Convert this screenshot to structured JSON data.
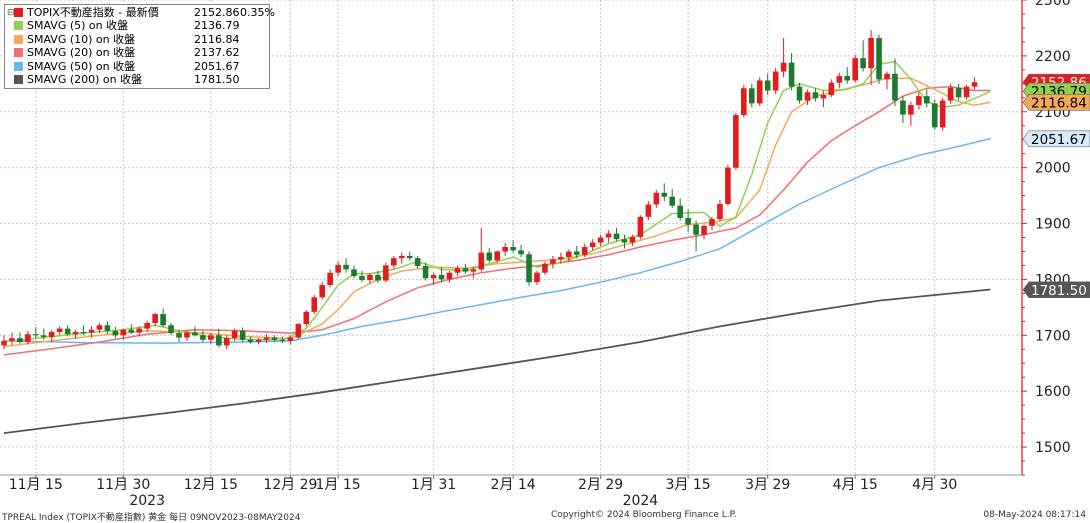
{
  "chart_data": {
    "type": "candlestick",
    "title": "",
    "xlabel": "",
    "ylabel": "",
    "ylim": [
      1450,
      2300
    ],
    "y_ticks": [
      1500,
      1600,
      1700,
      1800,
      1900,
      2000,
      2100,
      2200,
      2300
    ],
    "grid": true,
    "legend_position": "top-left",
    "colors": {
      "up": "#e11d1d",
      "down": "#1e7a2e",
      "sma5": "#8fd14f",
      "sma10": "#f4a95a",
      "sma20": "#ef6f73",
      "sma50": "#6ab6ee",
      "sma200": "#555555",
      "axis": "#e11d1d",
      "grid": "#c8c8c8"
    },
    "legend": [
      {
        "name": "TOPIX不動産指数 - 最新價",
        "value": "2152.86",
        "change": "0.35%",
        "color": "#e11d1d",
        "series": "price"
      },
      {
        "name": "SMAVG (5)  on 收盤",
        "value": "2136.79",
        "color": "#8fd14f",
        "series": "sma5"
      },
      {
        "name": "SMAVG (10)  on 收盤",
        "value": "2116.84",
        "color": "#f4a95a",
        "series": "sma10"
      },
      {
        "name": "SMAVG (20)  on 收盤",
        "value": "2137.62",
        "color": "#ef6f73",
        "series": "sma20"
      },
      {
        "name": "SMAVG (50)  on 收盤",
        "value": "2051.67",
        "color": "#6ab6ee",
        "series": "sma50"
      },
      {
        "name": "SMAVG (200)  on 收盤",
        "value": "1781.50",
        "color": "#555555",
        "series": "sma200"
      }
    ],
    "right_labels": [
      {
        "value": 2152.86,
        "text": "2152.86",
        "bg": "#e11d1d",
        "fg": "#ffffff"
      },
      {
        "value": 2136.79,
        "text": "2136.79",
        "bg": "#8fd14f",
        "fg": "#000000"
      },
      {
        "value": 2116.84,
        "text": "2116.84",
        "bg": "#f4a95a",
        "fg": "#000000"
      },
      {
        "value": 2051.67,
        "text": "2051.67",
        "bg": "#d6ebfb",
        "fg": "#000000"
      },
      {
        "value": 1781.5,
        "text": "1781.50",
        "bg": "#555555",
        "fg": "#ffffff"
      }
    ],
    "x_ticks": [
      {
        "label": "11月 15",
        "index": 4
      },
      {
        "label": "11月 30",
        "index": 15
      },
      {
        "label": "12月 15",
        "index": 26
      },
      {
        "label": "12月 29",
        "index": 36
      },
      {
        "label": "1月 15",
        "index": 42
      },
      {
        "label": "1月 31",
        "index": 54
      },
      {
        "label": "2月 14",
        "index": 64
      },
      {
        "label": "2月 29",
        "index": 75
      },
      {
        "label": "3月 15",
        "index": 86
      },
      {
        "label": "3月 29",
        "index": 96
      },
      {
        "label": "4月 15",
        "index": 107
      },
      {
        "label": "4月 30",
        "index": 117
      }
    ],
    "year_labels": [
      {
        "label": "2023",
        "index": 18
      },
      {
        "label": "2024",
        "index": 80
      }
    ],
    "candles": [
      [
        1682,
        1700,
        1675,
        1690
      ],
      [
        1690,
        1705,
        1682,
        1695
      ],
      [
        1695,
        1705,
        1685,
        1688
      ],
      [
        1688,
        1708,
        1684,
        1702
      ],
      [
        1702,
        1715,
        1695,
        1700
      ],
      [
        1700,
        1712,
        1692,
        1697
      ],
      [
        1697,
        1710,
        1688,
        1706
      ],
      [
        1706,
        1716,
        1700,
        1712
      ],
      [
        1712,
        1718,
        1698,
        1702
      ],
      [
        1702,
        1710,
        1694,
        1706
      ],
      [
        1706,
        1718,
        1700,
        1705
      ],
      [
        1705,
        1716,
        1696,
        1710
      ],
      [
        1710,
        1722,
        1704,
        1718
      ],
      [
        1718,
        1725,
        1702,
        1708
      ],
      [
        1708,
        1715,
        1695,
        1700
      ],
      [
        1700,
        1712,
        1692,
        1710
      ],
      [
        1710,
        1720,
        1702,
        1705
      ],
      [
        1705,
        1716,
        1698,
        1712
      ],
      [
        1712,
        1726,
        1706,
        1722
      ],
      [
        1722,
        1740,
        1716,
        1738
      ],
      [
        1738,
        1748,
        1715,
        1718
      ],
      [
        1718,
        1722,
        1700,
        1704
      ],
      [
        1704,
        1710,
        1688,
        1696
      ],
      [
        1696,
        1708,
        1690,
        1705
      ],
      [
        1705,
        1716,
        1698,
        1700
      ],
      [
        1700,
        1708,
        1688,
        1692
      ],
      [
        1692,
        1704,
        1684,
        1700
      ],
      [
        1700,
        1712,
        1678,
        1682
      ],
      [
        1682,
        1700,
        1675,
        1695
      ],
      [
        1695,
        1712,
        1690,
        1708
      ],
      [
        1708,
        1714,
        1688,
        1692
      ],
      [
        1692,
        1698,
        1685,
        1688
      ],
      [
        1688,
        1695,
        1684,
        1692
      ],
      [
        1692,
        1702,
        1686,
        1696
      ],
      [
        1696,
        1700,
        1688,
        1692
      ],
      [
        1692,
        1698,
        1686,
        1690
      ],
      [
        1690,
        1700,
        1684,
        1696
      ],
      [
        1696,
        1722,
        1694,
        1720
      ],
      [
        1720,
        1745,
        1716,
        1742
      ],
      [
        1742,
        1772,
        1738,
        1768
      ],
      [
        1768,
        1795,
        1764,
        1790
      ],
      [
        1790,
        1818,
        1786,
        1812
      ],
      [
        1812,
        1832,
        1806,
        1826
      ],
      [
        1826,
        1838,
        1812,
        1818
      ],
      [
        1818,
        1825,
        1802,
        1806
      ],
      [
        1806,
        1815,
        1795,
        1799
      ],
      [
        1799,
        1812,
        1792,
        1808
      ],
      [
        1808,
        1815,
        1794,
        1798
      ],
      [
        1798,
        1830,
        1795,
        1825
      ],
      [
        1825,
        1842,
        1818,
        1838
      ],
      [
        1838,
        1848,
        1828,
        1842
      ],
      [
        1842,
        1850,
        1834,
        1838
      ],
      [
        1838,
        1842,
        1820,
        1824
      ],
      [
        1824,
        1830,
        1798,
        1802
      ],
      [
        1802,
        1812,
        1790,
        1808
      ],
      [
        1808,
        1822,
        1795,
        1800
      ],
      [
        1800,
        1815,
        1794,
        1812
      ],
      [
        1812,
        1825,
        1806,
        1820
      ],
      [
        1820,
        1828,
        1810,
        1814
      ],
      [
        1814,
        1822,
        1802,
        1818
      ],
      [
        1818,
        1892,
        1814,
        1848
      ],
      [
        1848,
        1856,
        1830,
        1834
      ],
      [
        1834,
        1852,
        1830,
        1850
      ],
      [
        1850,
        1865,
        1842,
        1858
      ],
      [
        1858,
        1870,
        1848,
        1852
      ],
      [
        1852,
        1862,
        1840,
        1845
      ],
      [
        1845,
        1850,
        1788,
        1795
      ],
      [
        1795,
        1815,
        1790,
        1812
      ],
      [
        1812,
        1832,
        1808,
        1828
      ],
      [
        1828,
        1842,
        1820,
        1836
      ],
      [
        1836,
        1848,
        1828,
        1840
      ],
      [
        1840,
        1854,
        1832,
        1850
      ],
      [
        1850,
        1860,
        1838,
        1844
      ],
      [
        1844,
        1864,
        1840,
        1858
      ],
      [
        1858,
        1872,
        1852,
        1866
      ],
      [
        1866,
        1880,
        1860,
        1875
      ],
      [
        1875,
        1888,
        1866,
        1882
      ],
      [
        1882,
        1892,
        1868,
        1872
      ],
      [
        1872,
        1880,
        1855,
        1866
      ],
      [
        1866,
        1880,
        1860,
        1876
      ],
      [
        1876,
        1915,
        1872,
        1912
      ],
      [
        1912,
        1940,
        1906,
        1934
      ],
      [
        1934,
        1960,
        1928,
        1955
      ],
      [
        1955,
        1972,
        1940,
        1948
      ],
      [
        1948,
        1962,
        1928,
        1932
      ],
      [
        1932,
        1945,
        1905,
        1910
      ],
      [
        1910,
        1925,
        1885,
        1898
      ],
      [
        1898,
        1905,
        1850,
        1880
      ],
      [
        1880,
        1898,
        1872,
        1896
      ],
      [
        1896,
        1912,
        1888,
        1908
      ],
      [
        1908,
        1942,
        1904,
        1935
      ],
      [
        1935,
        2005,
        1932,
        2000
      ],
      [
        2000,
        2098,
        1996,
        2094
      ],
      [
        2094,
        2148,
        2090,
        2142
      ],
      [
        2142,
        2150,
        2108,
        2115
      ],
      [
        2115,
        2162,
        2110,
        2156
      ],
      [
        2156,
        2168,
        2130,
        2138
      ],
      [
        2138,
        2178,
        2132,
        2172
      ],
      [
        2172,
        2232,
        2162,
        2188
      ],
      [
        2188,
        2205,
        2138,
        2145
      ],
      [
        2145,
        2152,
        2115,
        2120
      ],
      [
        2120,
        2140,
        2112,
        2135
      ],
      [
        2135,
        2142,
        2118,
        2124
      ],
      [
        2124,
        2138,
        2108,
        2130
      ],
      [
        2130,
        2158,
        2126,
        2152
      ],
      [
        2152,
        2170,
        2142,
        2164
      ],
      [
        2164,
        2180,
        2150,
        2156
      ],
      [
        2156,
        2202,
        2152,
        2196
      ],
      [
        2196,
        2228,
        2172,
        2178
      ],
      [
        2178,
        2246,
        2148,
        2232
      ],
      [
        2232,
        2238,
        2150,
        2158
      ],
      [
        2158,
        2172,
        2140,
        2168
      ],
      [
        2168,
        2195,
        2110,
        2120
      ],
      [
        2120,
        2128,
        2080,
        2095
      ],
      [
        2095,
        2118,
        2075,
        2112
      ],
      [
        2112,
        2136,
        2104,
        2128
      ],
      [
        2128,
        2140,
        2108,
        2115
      ],
      [
        2115,
        2122,
        2068,
        2072
      ],
      [
        2072,
        2125,
        2066,
        2120
      ],
      [
        2120,
        2150,
        2114,
        2143
      ],
      [
        2143,
        2150,
        2120,
        2126
      ],
      [
        2126,
        2148,
        2122,
        2145
      ],
      [
        2145,
        2162,
        2140,
        2153
      ]
    ],
    "sma_series": {
      "sma5": [
        [
          0,
          1688
        ],
        [
          5,
          1696
        ],
        [
          10,
          1704
        ],
        [
          15,
          1710
        ],
        [
          19,
          1718
        ],
        [
          22,
          1708
        ],
        [
          26,
          1697
        ],
        [
          30,
          1693
        ],
        [
          35,
          1691
        ],
        [
          38,
          1712
        ],
        [
          40,
          1750
        ],
        [
          42,
          1790
        ],
        [
          44,
          1810
        ],
        [
          46,
          1810
        ],
        [
          49,
          1818
        ],
        [
          52,
          1832
        ],
        [
          55,
          1818
        ],
        [
          58,
          1815
        ],
        [
          61,
          1828
        ],
        [
          64,
          1840
        ],
        [
          67,
          1822
        ],
        [
          70,
          1830
        ],
        [
          73,
          1845
        ],
        [
          76,
          1864
        ],
        [
          80,
          1880
        ],
        [
          84,
          1918
        ],
        [
          88,
          1920
        ],
        [
          90,
          1895
        ],
        [
          92,
          1912
        ],
        [
          94,
          1988
        ],
        [
          96,
          2080
        ],
        [
          98,
          2138
        ],
        [
          100,
          2150
        ],
        [
          103,
          2138
        ],
        [
          106,
          2140
        ],
        [
          108,
          2150
        ],
        [
          110,
          2185
        ],
        [
          112,
          2190
        ],
        [
          114,
          2158
        ],
        [
          116,
          2118
        ],
        [
          118,
          2108
        ],
        [
          120,
          2112
        ],
        [
          122,
          2124
        ],
        [
          124,
          2136
        ]
      ],
      "sma10": [
        [
          0,
          1680
        ],
        [
          6,
          1690
        ],
        [
          12,
          1700
        ],
        [
          18,
          1708
        ],
        [
          24,
          1705
        ],
        [
          30,
          1698
        ],
        [
          36,
          1694
        ],
        [
          40,
          1720
        ],
        [
          42,
          1746
        ],
        [
          44,
          1778
        ],
        [
          47,
          1800
        ],
        [
          50,
          1815
        ],
        [
          54,
          1822
        ],
        [
          58,
          1820
        ],
        [
          62,
          1828
        ],
        [
          66,
          1832
        ],
        [
          70,
          1836
        ],
        [
          74,
          1846
        ],
        [
          78,
          1862
        ],
        [
          82,
          1878
        ],
        [
          86,
          1898
        ],
        [
          89,
          1902
        ],
        [
          92,
          1910
        ],
        [
          95,
          1960
        ],
        [
          97,
          2040
        ],
        [
          99,
          2100
        ],
        [
          102,
          2128
        ],
        [
          105,
          2138
        ],
        [
          108,
          2148
        ],
        [
          111,
          2160
        ],
        [
          114,
          2160
        ],
        [
          117,
          2140
        ],
        [
          120,
          2118
        ],
        [
          122,
          2112
        ],
        [
          124,
          2117
        ]
      ],
      "sma20": [
        [
          0,
          1665
        ],
        [
          6,
          1676
        ],
        [
          12,
          1688
        ],
        [
          18,
          1702
        ],
        [
          24,
          1710
        ],
        [
          30,
          1708
        ],
        [
          36,
          1704
        ],
        [
          40,
          1710
        ],
        [
          44,
          1730
        ],
        [
          48,
          1760
        ],
        [
          52,
          1785
        ],
        [
          56,
          1800
        ],
        [
          60,
          1812
        ],
        [
          64,
          1820
        ],
        [
          68,
          1826
        ],
        [
          72,
          1834
        ],
        [
          76,
          1844
        ],
        [
          80,
          1858
        ],
        [
          84,
          1870
        ],
        [
          88,
          1880
        ],
        [
          92,
          1892
        ],
        [
          95,
          1915
        ],
        [
          98,
          1960
        ],
        [
          101,
          2010
        ],
        [
          104,
          2048
        ],
        [
          107,
          2075
        ],
        [
          110,
          2100
        ],
        [
          113,
          2128
        ],
        [
          116,
          2142
        ],
        [
          119,
          2145
        ],
        [
          122,
          2138
        ],
        [
          124,
          2138
        ]
      ],
      "sma50": [
        [
          0,
          1690
        ],
        [
          10,
          1687
        ],
        [
          20,
          1686
        ],
        [
          30,
          1688
        ],
        [
          36,
          1690
        ],
        [
          40,
          1700
        ],
        [
          45,
          1716
        ],
        [
          50,
          1728
        ],
        [
          55,
          1742
        ],
        [
          60,
          1755
        ],
        [
          65,
          1768
        ],
        [
          70,
          1780
        ],
        [
          75,
          1795
        ],
        [
          80,
          1812
        ],
        [
          85,
          1832
        ],
        [
          90,
          1855
        ],
        [
          95,
          1895
        ],
        [
          100,
          1935
        ],
        [
          105,
          1968
        ],
        [
          110,
          2000
        ],
        [
          115,
          2022
        ],
        [
          120,
          2038
        ],
        [
          124,
          2052
        ]
      ],
      "sma200": [
        [
          0,
          1525
        ],
        [
          10,
          1543
        ],
        [
          20,
          1560
        ],
        [
          30,
          1578
        ],
        [
          40,
          1598
        ],
        [
          50,
          1620
        ],
        [
          60,
          1642
        ],
        [
          70,
          1664
        ],
        [
          80,
          1688
        ],
        [
          90,
          1716
        ],
        [
          100,
          1740
        ],
        [
          110,
          1762
        ],
        [
          124,
          1782
        ]
      ]
    }
  },
  "footer": {
    "left": "TPREAL Index (TOPIX不動産指數) 黄金  每日 09NOV2023-08MAY2024",
    "center": "Copyright© 2024 Bloomberg Finance L.P.",
    "right": "08-May-2024 08:17:14"
  }
}
